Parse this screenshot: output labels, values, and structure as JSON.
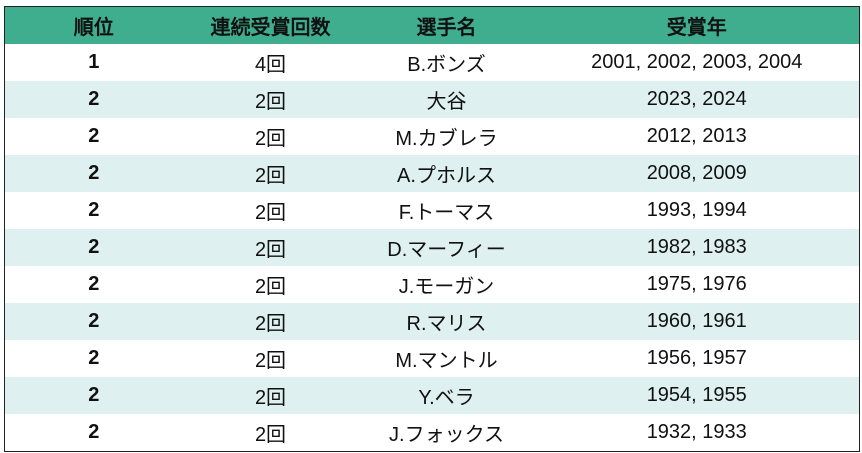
{
  "table": {
    "header": [
      "順位",
      "連続受賞回数",
      "選手名",
      "受賞年"
    ],
    "rows": [
      [
        "1",
        "4回",
        "B.ボンズ",
        "2001, 2002, 2003, 2004"
      ],
      [
        "2",
        "2回",
        "大谷",
        "2023, 2024"
      ],
      [
        "2",
        "2回",
        "M.カブレラ",
        "2012, 2013"
      ],
      [
        "2",
        "2回",
        "A.プホルス",
        "2008, 2009"
      ],
      [
        "2",
        "2回",
        "F.トーマス",
        "1993, 1994"
      ],
      [
        "2",
        "2回",
        "D.マーフィー",
        "1982, 1983"
      ],
      [
        "2",
        "2回",
        "J.モーガン",
        "1975, 1976"
      ],
      [
        "2",
        "2回",
        "R.マリス",
        "1960, 1961"
      ],
      [
        "2",
        "2回",
        "M.マントル",
        "1956, 1957"
      ],
      [
        "2",
        "2回",
        "Y.ベラ",
        "1954, 1955"
      ],
      [
        "2",
        "2回",
        "J.フォックス",
        "1932, 1933"
      ]
    ]
  }
}
